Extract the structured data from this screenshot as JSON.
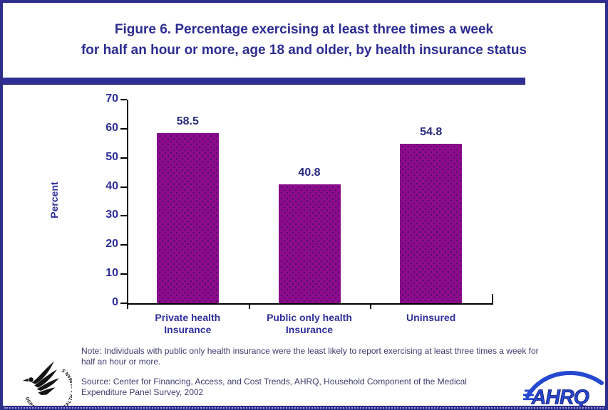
{
  "title": {
    "line1": "Figure 6. Percentage exercising at least three times a week",
    "line2": "for half an hour or more, age 18 and older, by health insurance status"
  },
  "chart_data": {
    "type": "bar",
    "title": "Figure 6. Percentage exercising at least three times a week for half an hour or more, age 18 and older, by health insurance status",
    "categories": [
      "Private health\nInsurance",
      "Public only health\nInsurance",
      "Uninsured"
    ],
    "values": [
      58.5,
      40.8,
      54.8
    ],
    "value_labels": [
      "58.5",
      "40.8",
      "54.8"
    ],
    "xlabel": "",
    "ylabel": "Percent",
    "ylim": [
      0,
      70
    ],
    "yticks": [
      0,
      10,
      20,
      30,
      40,
      50,
      60,
      70
    ],
    "grid": false,
    "legend": "none",
    "bar_color": "#8e0b8e"
  },
  "footnotes": {
    "note": "Note: Individuals with public only health insurance were the least likely to report exercising at least three times a week for half an hour or more.",
    "source": "Source: Center for Financing, Access, and Cost Trends, AHRQ, Household Component of the Medical Expenditure Panel Survey, 2002"
  },
  "logos": {
    "hhs_arc_text": "DEPARTMENT OF HEALTH & HUMAN SERVICES · USA",
    "ahrq_text": "AHRQ"
  },
  "colors": {
    "navy": "#2d2d8f",
    "title_text": "#2d2d92",
    "bar_purple": "#8e0b8e",
    "bar_dot": "#4d0f62",
    "axis": "#000000",
    "footnote_text": "#3c3c6e",
    "ahrq_blue": "#2448d0"
  }
}
